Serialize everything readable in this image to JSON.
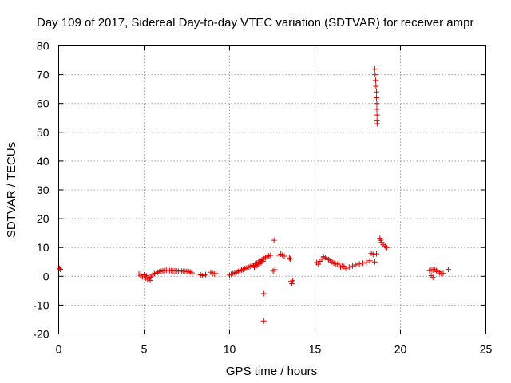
{
  "chart_data": {
    "type": "scatter",
    "title": "Day 109 of 2017, Sidereal Day-to-day VTEC variation (SDTVAR) for receiver ampr",
    "xlabel": "GPS time / hours",
    "ylabel": "SDTVAR / TECUs",
    "xlim": [
      0,
      25
    ],
    "ylim": [
      -20,
      80
    ],
    "xticks": [
      0,
      5,
      10,
      15,
      20,
      25
    ],
    "yticks": [
      -20,
      -10,
      0,
      10,
      20,
      30,
      40,
      50,
      60,
      70,
      80
    ],
    "grid": true,
    "marker": "+",
    "color": "#e00000",
    "series": [
      {
        "name": "SDTVAR",
        "points": [
          [
            0.05,
            2.8
          ],
          [
            0.1,
            2.4
          ],
          [
            4.7,
            0.8
          ],
          [
            4.8,
            0.3
          ],
          [
            4.9,
            -0.2
          ],
          [
            5.0,
            0.5
          ],
          [
            5.1,
            -0.6
          ],
          [
            5.15,
            0.2
          ],
          [
            5.2,
            -1.0
          ],
          [
            5.3,
            -0.4
          ],
          [
            5.35,
            -1.4
          ],
          [
            5.4,
            -0.2
          ],
          [
            5.5,
            0.4
          ],
          [
            5.6,
            0.9
          ],
          [
            5.7,
            1.1
          ],
          [
            5.8,
            1.4
          ],
          [
            5.9,
            1.6
          ],
          [
            6.0,
            1.8
          ],
          [
            6.1,
            1.9
          ],
          [
            6.2,
            2.0
          ],
          [
            6.3,
            2.1
          ],
          [
            6.4,
            2.1
          ],
          [
            6.5,
            2.0
          ],
          [
            6.6,
            2.0
          ],
          [
            6.7,
            1.9
          ],
          [
            6.8,
            1.9
          ],
          [
            6.9,
            1.9
          ],
          [
            7.0,
            1.8
          ],
          [
            7.1,
            1.8
          ],
          [
            7.2,
            1.8
          ],
          [
            7.3,
            1.7
          ],
          [
            7.4,
            1.7
          ],
          [
            7.5,
            1.7
          ],
          [
            7.6,
            1.6
          ],
          [
            7.7,
            1.5
          ],
          [
            7.8,
            1.2
          ],
          [
            8.3,
            0.5
          ],
          [
            8.4,
            0.2
          ],
          [
            8.5,
            0.3
          ],
          [
            8.6,
            0.6
          ],
          [
            8.9,
            1.4
          ],
          [
            9.0,
            1.0
          ],
          [
            9.1,
            0.8
          ],
          [
            9.2,
            0.9
          ],
          [
            10.0,
            0.4
          ],
          [
            10.1,
            0.7
          ],
          [
            10.2,
            0.9
          ],
          [
            10.3,
            1.2
          ],
          [
            10.4,
            1.4
          ],
          [
            10.5,
            1.7
          ],
          [
            10.6,
            1.9
          ],
          [
            10.7,
            2.2
          ],
          [
            10.8,
            2.4
          ],
          [
            10.9,
            2.7
          ],
          [
            11.0,
            2.9
          ],
          [
            11.1,
            3.2
          ],
          [
            11.2,
            3.4
          ],
          [
            11.3,
            3.7
          ],
          [
            11.4,
            3.9
          ],
          [
            11.5,
            4.3
          ],
          [
            11.6,
            4.6
          ],
          [
            11.7,
            5.0
          ],
          [
            11.8,
            5.4
          ],
          [
            11.9,
            5.8
          ],
          [
            12.0,
            6.1
          ],
          [
            12.1,
            6.5
          ],
          [
            12.2,
            6.8
          ],
          [
            12.3,
            7.1
          ],
          [
            12.4,
            7.3
          ],
          [
            11.45,
            3.1
          ],
          [
            11.55,
            3.6
          ],
          [
            11.65,
            4.0
          ],
          [
            11.75,
            4.4
          ],
          [
            11.85,
            4.8
          ],
          [
            11.95,
            5.2
          ],
          [
            12.0,
            -6.0
          ],
          [
            12.0,
            -15.5
          ],
          [
            12.6,
            12.5
          ],
          [
            12.55,
            1.8
          ],
          [
            12.65,
            2.3
          ],
          [
            12.9,
            7.3
          ],
          [
            13.0,
            7.7
          ],
          [
            13.1,
            7.4
          ],
          [
            13.2,
            7.0
          ],
          [
            13.5,
            6.4
          ],
          [
            13.55,
            6.0
          ],
          [
            13.6,
            -1.8
          ],
          [
            13.65,
            -2.6
          ],
          [
            13.7,
            -1.5
          ],
          [
            15.1,
            4.8
          ],
          [
            15.2,
            4.2
          ],
          [
            15.3,
            5.2
          ],
          [
            15.4,
            6.0
          ],
          [
            15.5,
            6.8
          ],
          [
            15.6,
            6.5
          ],
          [
            15.7,
            6.2
          ],
          [
            15.8,
            5.8
          ],
          [
            15.9,
            5.4
          ],
          [
            16.0,
            5.0
          ],
          [
            16.1,
            4.6
          ],
          [
            16.2,
            4.3
          ],
          [
            16.3,
            4.2
          ],
          [
            16.4,
            4.6
          ],
          [
            16.5,
            3.2
          ],
          [
            16.6,
            3.6
          ],
          [
            16.7,
            3.4
          ],
          [
            16.8,
            2.8
          ],
          [
            17.0,
            3.2
          ],
          [
            17.2,
            3.6
          ],
          [
            17.4,
            4.0
          ],
          [
            17.6,
            4.3
          ],
          [
            17.8,
            4.6
          ],
          [
            18.0,
            4.8
          ],
          [
            18.2,
            5.4
          ],
          [
            18.3,
            8.0
          ],
          [
            18.4,
            7.6
          ],
          [
            18.5,
            5.0
          ],
          [
            18.6,
            7.8
          ],
          [
            18.5,
            72.0
          ],
          [
            18.52,
            70.0
          ],
          [
            18.55,
            68.0
          ],
          [
            18.57,
            66.0
          ],
          [
            18.6,
            64.0
          ],
          [
            18.6,
            62.0
          ],
          [
            18.62,
            60.0
          ],
          [
            18.62,
            58.0
          ],
          [
            18.63,
            56.0
          ],
          [
            18.63,
            54.0
          ],
          [
            18.64,
            53.0
          ],
          [
            18.8,
            13.2
          ],
          [
            18.85,
            12.5
          ],
          [
            18.9,
            11.8
          ],
          [
            19.0,
            11.0
          ],
          [
            19.1,
            10.4
          ],
          [
            19.2,
            10.0
          ],
          [
            21.7,
            2.0
          ],
          [
            21.8,
            2.3
          ],
          [
            21.9,
            2.2
          ],
          [
            22.0,
            2.4
          ],
          [
            22.1,
            2.0
          ],
          [
            22.2,
            1.6
          ],
          [
            22.3,
            1.2
          ],
          [
            22.4,
            0.9
          ],
          [
            22.5,
            1.0
          ],
          [
            21.8,
            0.2
          ],
          [
            21.9,
            -0.4
          ],
          [
            22.8,
            2.4
          ]
        ]
      }
    ]
  }
}
